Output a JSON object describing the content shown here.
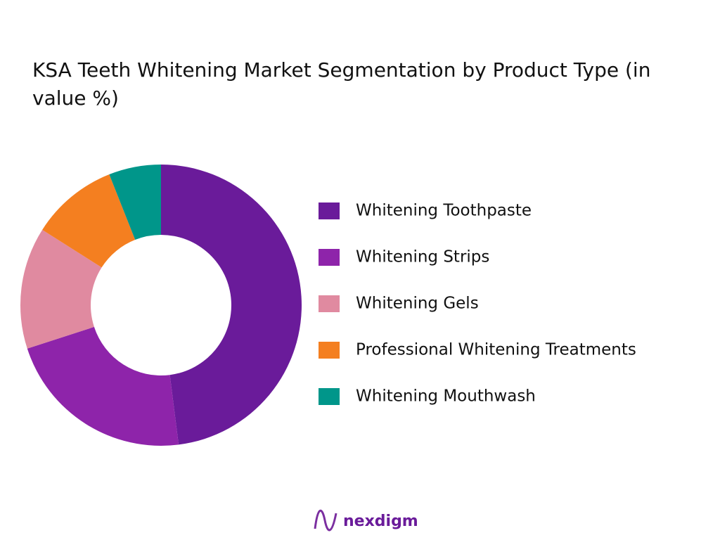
{
  "chart_data": {
    "type": "pie",
    "title": "KSA Teeth Whitening Market Segmentation by Product Type (in value %)",
    "categories": [
      "Whitening Toothpaste",
      "Whitening Strips",
      "Whitening Gels",
      "Professional Whitening Treatments",
      "Whitening Mouthwash"
    ],
    "values": [
      48,
      22,
      14,
      10,
      6
    ],
    "colors": [
      "#6a1b9a",
      "#8e24aa",
      "#e08aa0",
      "#f47f20",
      "#00968a"
    ],
    "legend": "right"
  },
  "brand": "nexdigm"
}
